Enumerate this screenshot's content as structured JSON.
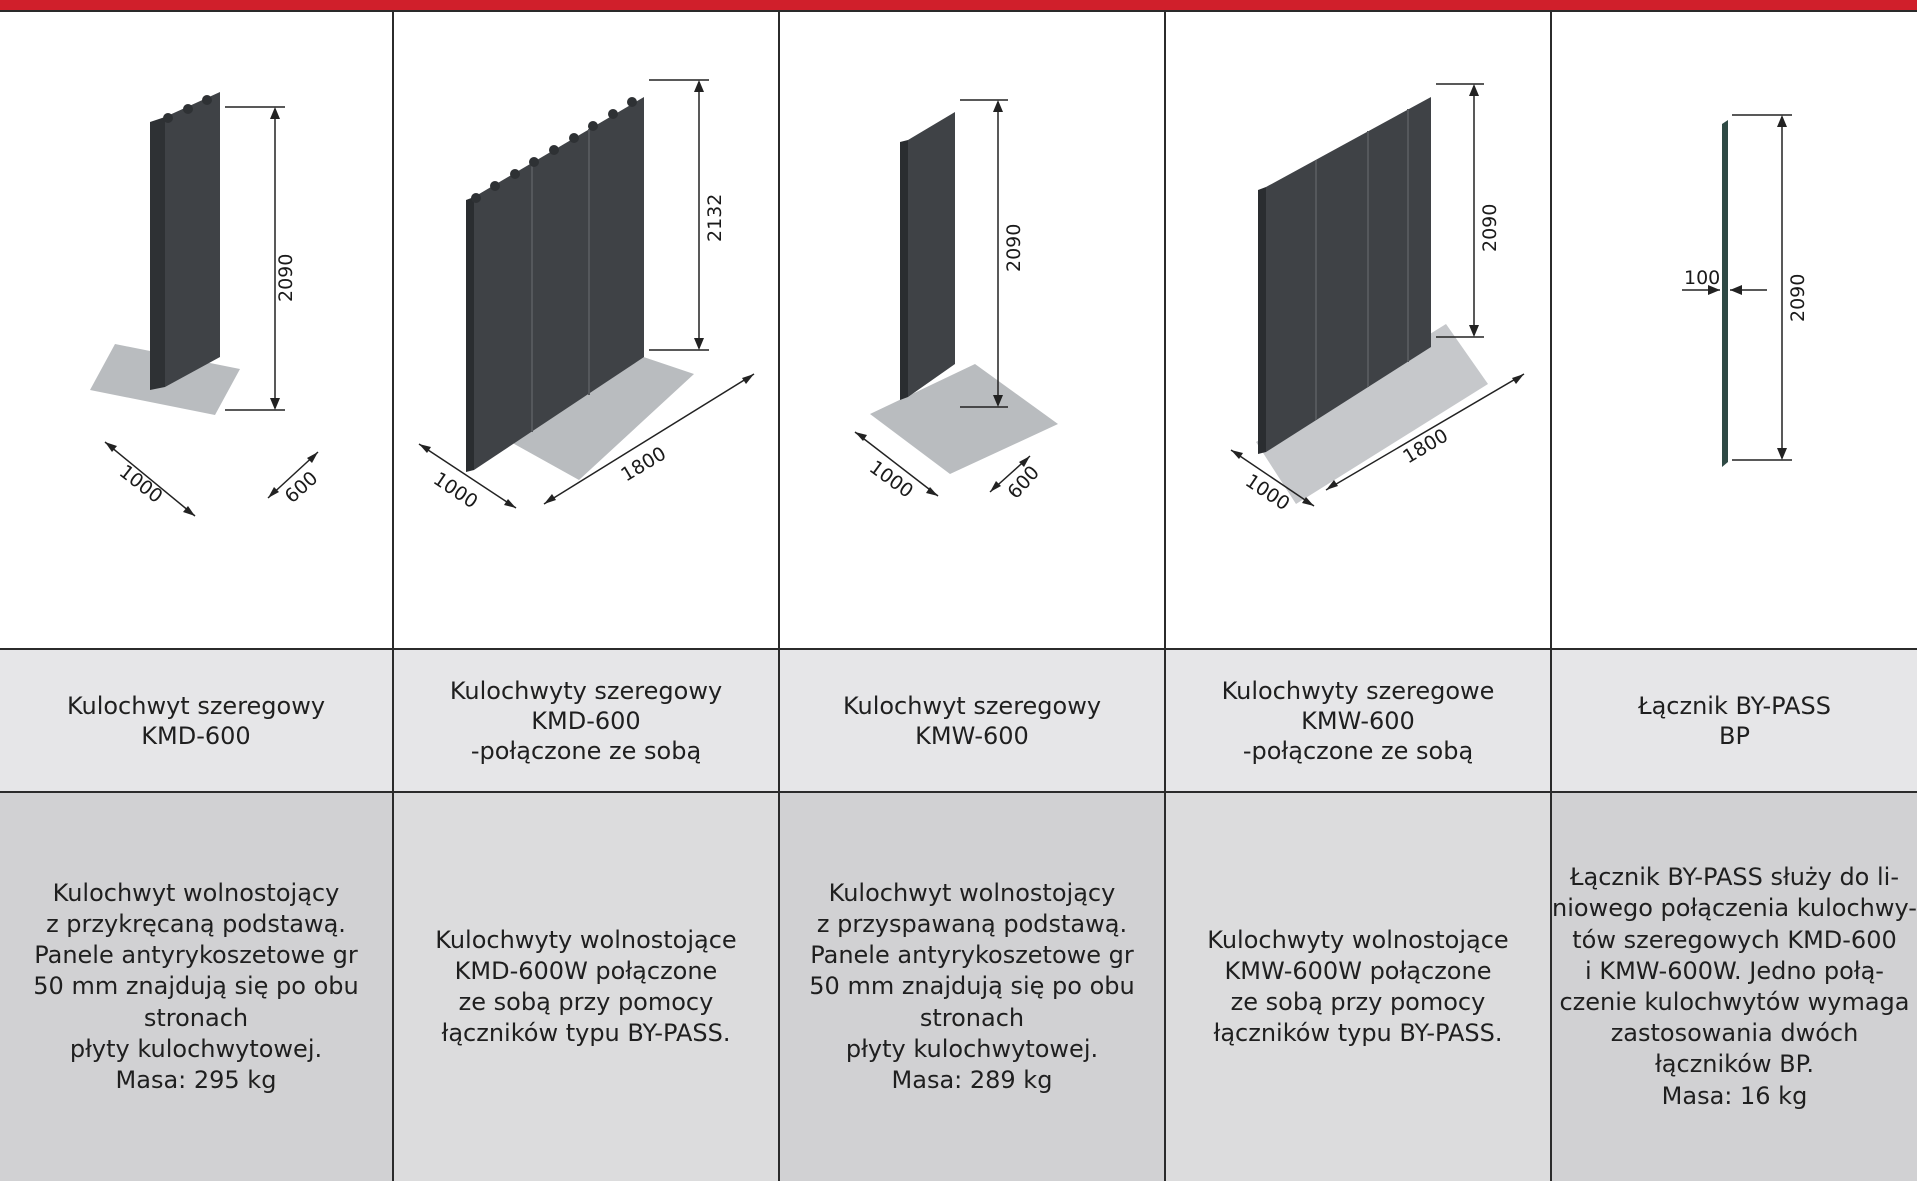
{
  "colors": {
    "accent": "#d01f2b",
    "panel": "#3f4246",
    "base": "#b9bcbf"
  },
  "products": [
    {
      "name": "Kulochwyt szeregowy\nKMD-600",
      "description": "Kulochwyt wolnostojący\nz przykręcaną podstawą.\nPanele antyrykoszetowe gr\n50 mm znajdują się po obu\nstronach\npłyty kulochwytowej.\nMasa: 295 kg",
      "dims": {
        "height": "2090",
        "length": "1000",
        "width": "600"
      }
    },
    {
      "name": "Kulochwyty szeregowy\nKMD-600\n-połączone ze sobą",
      "description": "Kulochwyty wolnostojące\nKMD-600W połączone\nze sobą przy pomocy\nłączników typu BY-PASS.",
      "dims": {
        "height": "2132",
        "length": "1000",
        "width": "1800"
      }
    },
    {
      "name": "Kulochwyt szeregowy\nKMW-600",
      "description": "Kulochwyt wolnostojący\nz przyspawaną podstawą.\nPanele antyrykoszetowe gr\n50 mm znajdują się po obu\nstronach\npłyty kulochwytowej.\nMasa: 289 kg",
      "dims": {
        "height": "2090",
        "length": "1000",
        "width": "600"
      }
    },
    {
      "name": "Kulochwyty szeregowe\nKMW-600\n-połączone ze sobą",
      "description": "Kulochwyty wolnostojące\nKMW-600W połączone\nze sobą przy pomocy\nłączników typu BY-PASS.",
      "dims": {
        "height": "2090",
        "length": "1000",
        "width": "1800"
      }
    },
    {
      "name": "Łącznik BY-PASS\nBP",
      "description": "Łącznik BY-PASS służy do li-\nniowego połączenia kulochwy-\ntów szeregowych KMD-600\ni KMW-600W. Jedno połą-\nczenie kulochwytów wymaga\nzastosowania dwóch\nłączników BP.\nMasa: 16 kg",
      "dims": {
        "height": "2090",
        "thickness": "100"
      }
    }
  ]
}
